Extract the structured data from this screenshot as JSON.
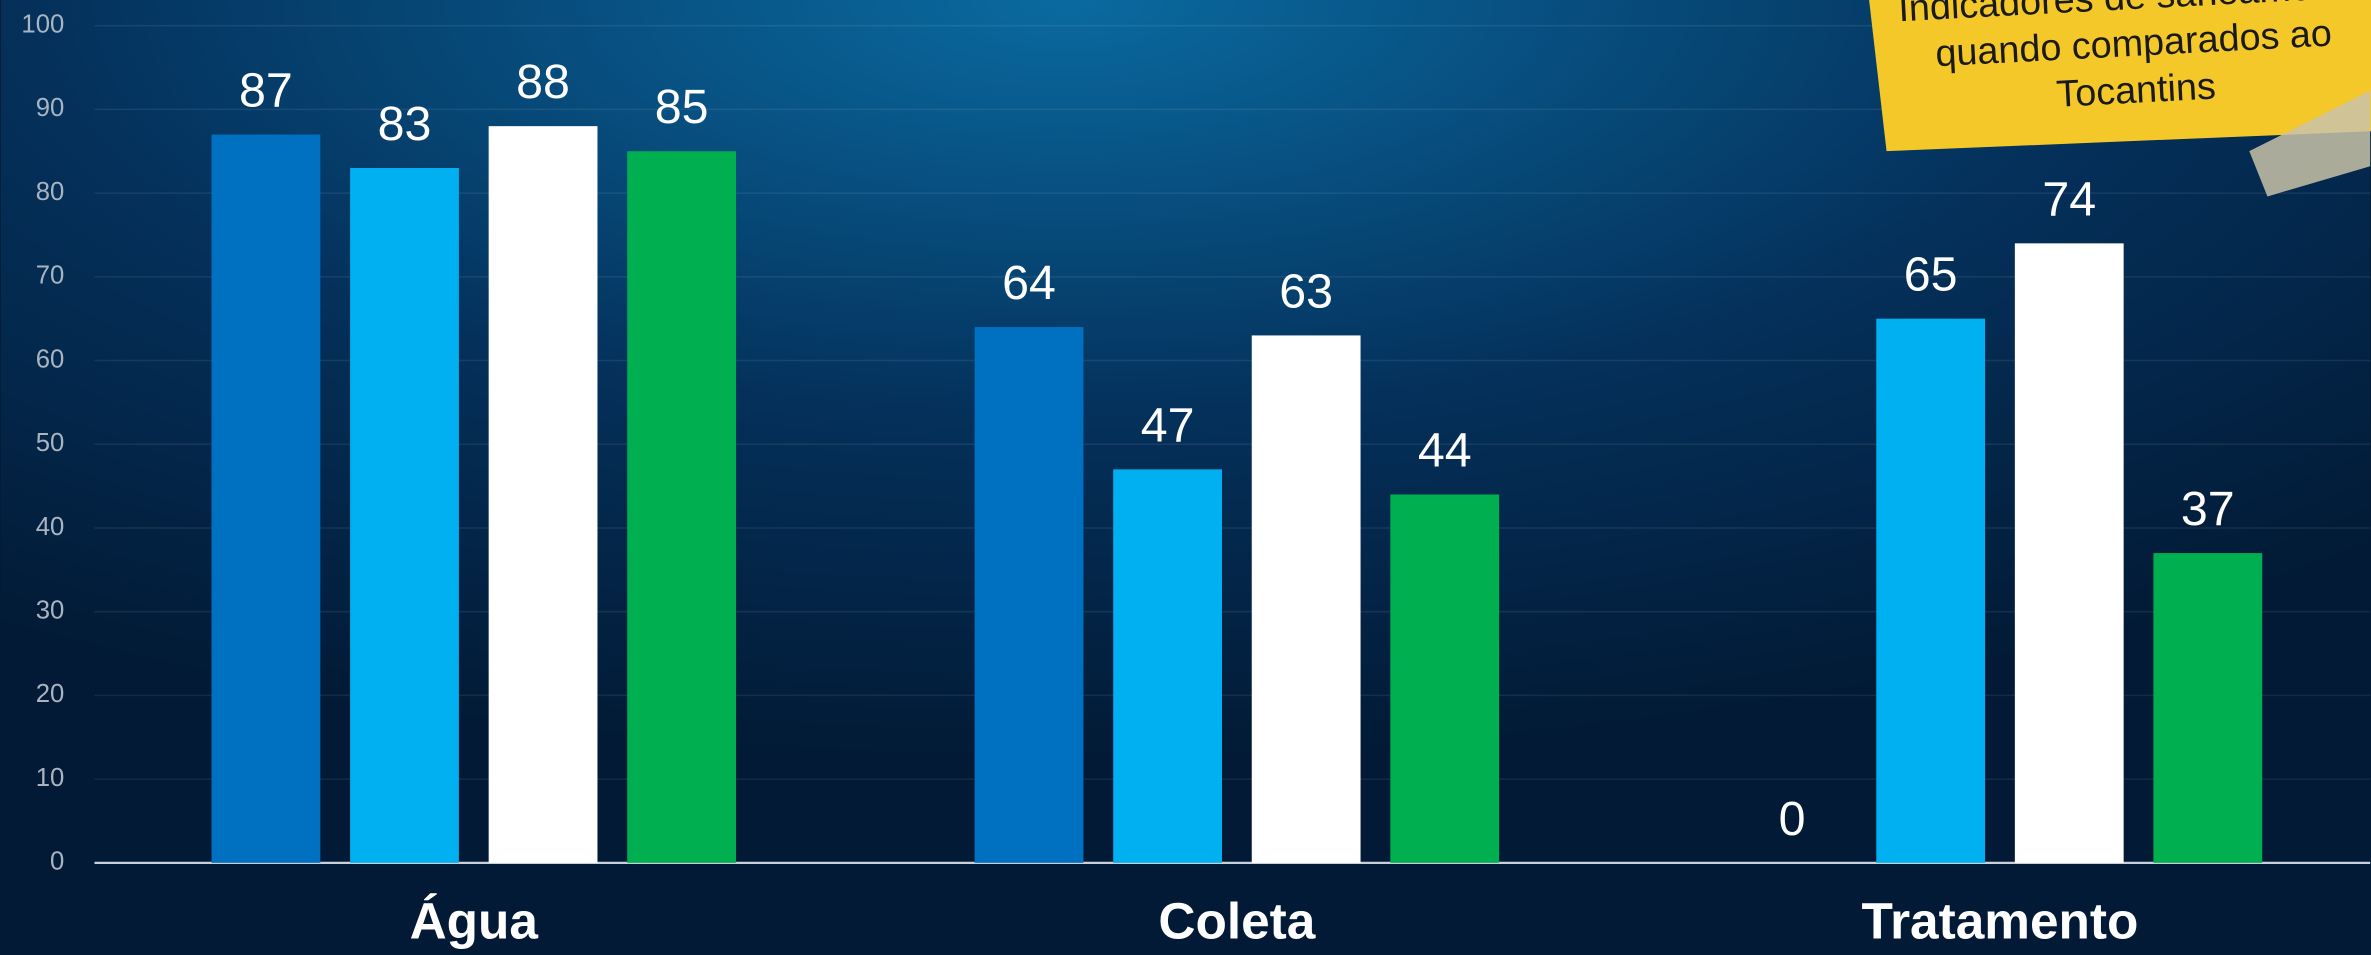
{
  "chart_data": {
    "type": "bar",
    "categories": [
      "Água",
      "Coleta",
      "Tratamento"
    ],
    "series": [
      {
        "color": "#0070c0",
        "values": [
          87,
          64,
          0
        ]
      },
      {
        "color": "#00b0f0",
        "values": [
          83,
          47,
          65
        ]
      },
      {
        "color": "#ffffff",
        "values": [
          88,
          63,
          74
        ]
      },
      {
        "color": "#00b050",
        "values": [
          85,
          44,
          37
        ]
      }
    ],
    "ylim": [
      0,
      100
    ],
    "yticks": [
      0,
      10,
      20,
      30,
      40,
      50,
      60,
      70,
      80,
      90,
      100
    ],
    "grid": true,
    "annotation": [
      "Indicadores de saneamento",
      "quando comparados ao",
      "Tocantins"
    ]
  }
}
